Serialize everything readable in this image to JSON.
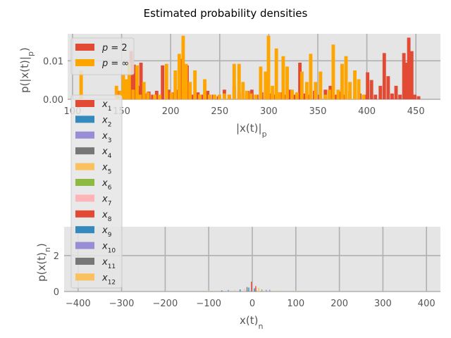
{
  "figure": {
    "suptitle": "Estimated probability densities"
  },
  "colors": {
    "panel_bg": "#e5e5e5",
    "grid": "#b0b0b0",
    "tick_text": "#555555",
    "label_text": "#555555",
    "p2": "#e24a33",
    "pinf": "#ffa500",
    "x_series": [
      "#e24a33",
      "#348abd",
      "#988ed5",
      "#777777",
      "#fbc15e",
      "#8eba42",
      "#ffb5b8",
      "#e24a33",
      "#348abd",
      "#988ed5",
      "#777777",
      "#fbc15e"
    ]
  },
  "chart_data": [
    {
      "type": "bar",
      "subtype": "histogram",
      "xlabel": "|x(t)|",
      "xlabel_sub": "p",
      "ylabel": "p(|x(t)|",
      "ylabel_sub": "p",
      "xlim": [
        95,
        475
      ],
      "ylim": [
        0,
        0.017
      ],
      "xticks": [
        100,
        150,
        200,
        250,
        300,
        350,
        400,
        450
      ],
      "yticks": [
        0.0,
        0.01
      ],
      "ytick_labels": [
        "0.00",
        "0.01"
      ],
      "grid": true,
      "legend": {
        "placement": "top-left",
        "entries": [
          "p = 2",
          "p = ∞"
        ]
      },
      "series": [
        {
          "name": "p = 2",
          "bin_width": 3.5,
          "x": [
            146,
            149,
            152,
            155,
            158,
            161,
            165,
            168,
            172,
            176,
            180,
            184,
            190,
            196,
            201,
            205,
            210,
            215,
            221,
            226,
            231,
            236,
            242,
            247,
            253,
            258,
            263,
            268,
            272,
            277,
            281,
            286,
            291,
            296,
            300,
            305,
            310,
            315,
            320,
            325,
            330,
            335,
            340,
            345,
            350,
            356,
            361,
            366,
            371,
            376,
            381,
            386,
            391,
            396,
            399,
            403,
            407,
            412,
            416,
            420,
            424,
            428,
            432,
            436,
            439,
            441,
            444,
            447,
            451
          ],
          "values": [
            0.0022,
            0.0012,
            0.0035,
            0.0022,
            0.0125,
            0.009,
            0.0035,
            0.0095,
            0.0015,
            0.002,
            0.0012,
            0.0022,
            0.0088,
            0.0025,
            0.0018,
            0.0025,
            0.0105,
            0.0088,
            0.0012,
            0.0018,
            0.0012,
            0.0022,
            0.0012,
            0.0008,
            0.0025,
            0.0012,
            0.0035,
            0.0018,
            0.0012,
            0.0022,
            0.0025,
            0.0012,
            0.0018,
            0.0022,
            0.0015,
            0.0012,
            0.0018,
            0.0012,
            0.0025,
            0.0012,
            0.0095,
            0.0015,
            0.0012,
            0.0022,
            0.0012,
            0.0025,
            0.0035,
            0.0012,
            0.002,
            0.0012,
            0.0022,
            0.0012,
            0.0015,
            0.0012,
            0.007,
            0.005,
            0.0012,
            0.0035,
            0.012,
            0.006,
            0.0015,
            0.0035,
            0.0012,
            0.012,
            0.0095,
            0.016,
            0.0125,
            0.0012,
            0.0008
          ]
        },
        {
          "name": "p = ∞",
          "bin_width": 3.5,
          "x": [
            107,
            143,
            147,
            150,
            153,
            156,
            160,
            164,
            167,
            171,
            175,
            182,
            187,
            194,
            199,
            203,
            207,
            211,
            214,
            218,
            223,
            228,
            233,
            238,
            243,
            248,
            253,
            258,
            263,
            268,
            272,
            276,
            280,
            285,
            290,
            295,
            298,
            302,
            306,
            309,
            313,
            317,
            322,
            327,
            332,
            337,
            341,
            346,
            351,
            356,
            360,
            364,
            369,
            373,
            377,
            381,
            386,
            390,
            395
          ],
          "values": [
            0.0075,
            0.0035,
            0.0022,
            0.0065,
            0.0052,
            0.0095,
            0.0025,
            0.0088,
            0.0012,
            0.0045,
            0.0018,
            0.0012,
            0.0012,
            0.0092,
            0.0018,
            0.0075,
            0.0118,
            0.0165,
            0.0092,
            0.0045,
            0.0075,
            0.0012,
            0.0052,
            0.0012,
            0.0012,
            0.0012,
            0.0015,
            0.0012,
            0.0092,
            0.0092,
            0.0045,
            0.0022,
            0.0015,
            0.0012,
            0.0085,
            0.0072,
            0.0165,
            0.0035,
            0.0132,
            0.0018,
            0.0112,
            0.0085,
            0.0025,
            0.0018,
            0.0072,
            0.0045,
            0.0118,
            0.0045,
            0.0072,
            0.0012,
            0.0025,
            0.0142,
            0.0025,
            0.0092,
            0.0112,
            0.0045,
            0.0075,
            0.0052,
            0.0012
          ]
        }
      ]
    },
    {
      "type": "bar",
      "subtype": "histogram",
      "xlabel": "x(t)",
      "xlabel_sub": "n",
      "ylabel": "p(x(t)",
      "ylabel_sub": "n",
      "xlim": [
        -432,
        432
      ],
      "ylim": [
        0,
        3.6
      ],
      "xticks": [
        -400,
        -300,
        -200,
        -100,
        0,
        100,
        200,
        300,
        400
      ],
      "xtick_labels": [
        "−400",
        "−300",
        "−200",
        "−100",
        "0",
        "100",
        "200",
        "300",
        "400"
      ],
      "yticks": [
        0,
        2
      ],
      "grid": true,
      "legend": {
        "placement": "left",
        "entries": [
          "x1",
          "x2",
          "x3",
          "x4",
          "x5",
          "x6",
          "x7",
          "x8",
          "x9",
          "x10",
          "x11",
          "x12"
        ],
        "subscripts": [
          "1",
          "2",
          "3",
          "4",
          "5",
          "6",
          "7",
          "8",
          "9",
          "10",
          "11",
          "12"
        ]
      },
      "spikes": [
        {
          "series": 0,
          "x": -2,
          "value": 0.55
        },
        {
          "series": 1,
          "x": -28,
          "value": 0.12
        },
        {
          "series": 1,
          "x": 5,
          "value": 0.18
        },
        {
          "series": 2,
          "x": -55,
          "value": 0.09
        },
        {
          "series": 2,
          "x": 32,
          "value": 0.1
        },
        {
          "series": 3,
          "x": -12,
          "value": 0.25
        },
        {
          "series": 4,
          "x": 15,
          "value": 0.2
        },
        {
          "series": 4,
          "x": -40,
          "value": 0.08
        },
        {
          "series": 5,
          "x": 22,
          "value": 0.12
        },
        {
          "series": 6,
          "x": -18,
          "value": 0.15
        },
        {
          "series": 7,
          "x": 8,
          "value": 0.3
        },
        {
          "series": 8,
          "x": -8,
          "value": 0.22
        },
        {
          "series": 9,
          "x": 40,
          "value": 0.1
        },
        {
          "series": 10,
          "x": -70,
          "value": 0.06
        },
        {
          "series": 11,
          "x": 60,
          "value": 0.06
        },
        {
          "series": 4,
          "x": -130,
          "value": 0.04
        },
        {
          "series": 4,
          "x": 140,
          "value": 0.04
        },
        {
          "series": 11,
          "x": 100,
          "value": 0.05
        },
        {
          "series": 11,
          "x": -100,
          "value": 0.05
        }
      ]
    }
  ]
}
